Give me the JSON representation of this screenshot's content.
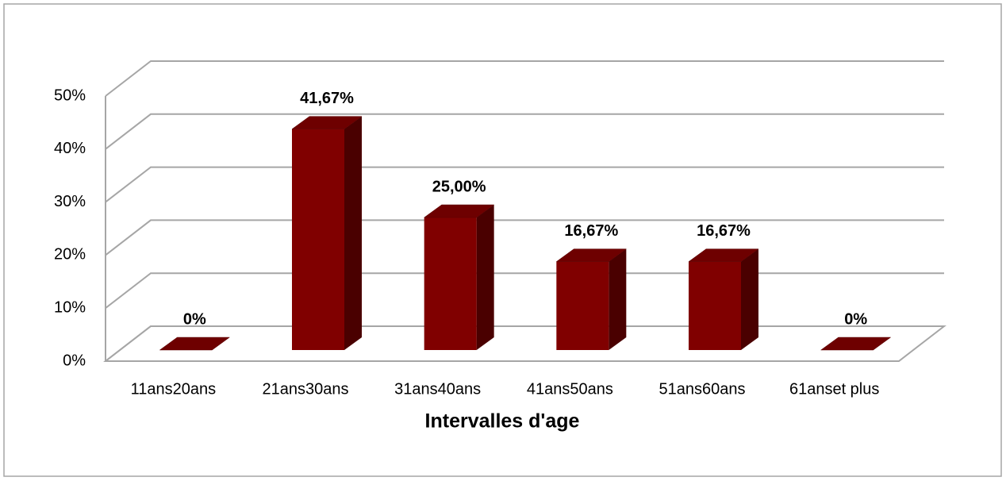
{
  "chart_data": {
    "type": "bar3d",
    "categories": [
      "11ans20ans",
      "21ans30ans",
      "31ans40ans",
      "41ans50ans",
      "51ans60ans",
      "61anset plus"
    ],
    "values": [
      0,
      41.67,
      25,
      16.67,
      16.67,
      0
    ],
    "value_labels": [
      "0%",
      "41,67%",
      "25,00%",
      "16,67%",
      "16,67%",
      "0%"
    ],
    "color": "#800000",
    "x_label": "Intervalles d'age",
    "ylim": [
      0,
      50
    ],
    "yticks": [
      {
        "value": 0,
        "label": "0%"
      },
      {
        "value": 10,
        "label": "10%"
      },
      {
        "value": 20,
        "label": "20%"
      },
      {
        "value": 30,
        "label": "30%"
      },
      {
        "value": 40,
        "label": "40%"
      },
      {
        "value": 50,
        "label": "50%"
      }
    ],
    "grid": true
  }
}
